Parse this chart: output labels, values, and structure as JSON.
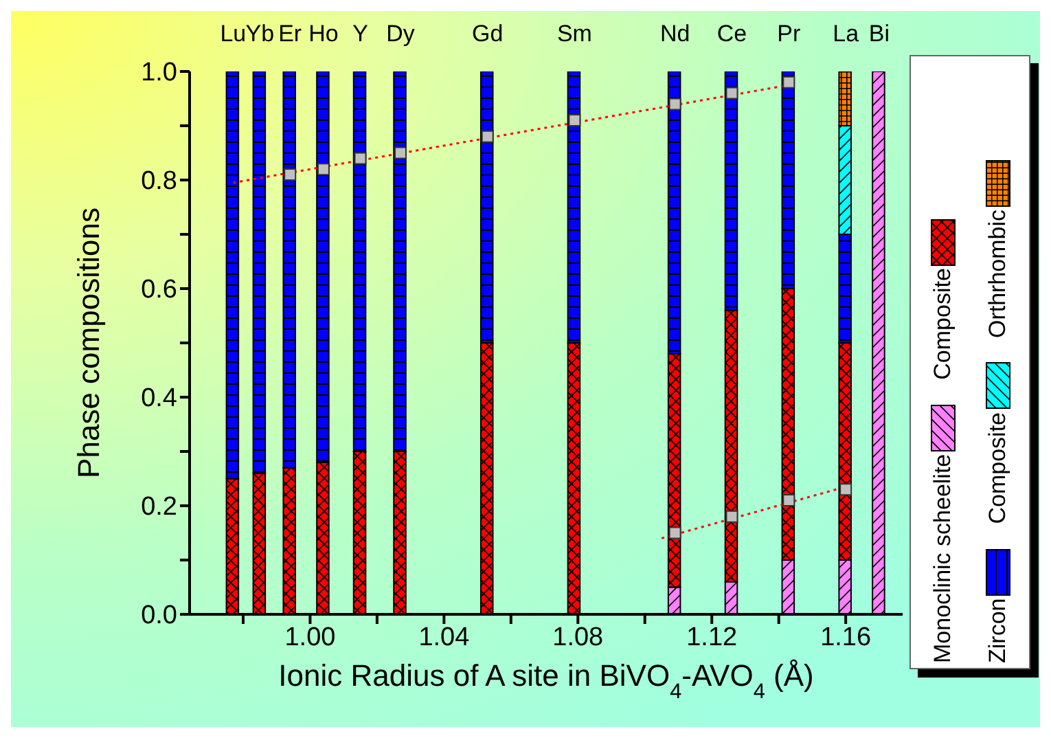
{
  "chart_data": {
    "type": "bar",
    "stacked": true,
    "xlabel": "Ionic Radius of A site in BiVO$_{4}$-AVO$_{4}$ (Å)",
    "ylabel": "Phase compositions",
    "x": [
      0.977,
      0.985,
      0.994,
      1.004,
      1.015,
      1.027,
      1.053,
      1.079,
      1.109,
      1.126,
      1.143,
      1.16,
      1.17
    ],
    "series": [
      {
        "name": "Monoclinic scheelite",
        "color": "#ff80ff",
        "values": [
          null,
          null,
          null,
          null,
          null,
          null,
          null,
          null,
          0.05,
          0.06,
          0.1,
          0.1,
          1.0
        ]
      },
      {
        "name": "Composite",
        "color": "#ff0000",
        "values": [
          0.25,
          0.26,
          0.27,
          0.28,
          0.3,
          0.3,
          0.5,
          0.5,
          0.43,
          0.5,
          0.5,
          0.4,
          null
        ]
      },
      {
        "name": "Zircon",
        "color": "#0000ff",
        "values": [
          0.75,
          0.74,
          0.73,
          0.72,
          0.7,
          0.7,
          0.5,
          0.5,
          0.52,
          0.44,
          0.4,
          0.2,
          null
        ]
      },
      {
        "name": "Composite",
        "color": "#00ffff",
        "values": [
          null,
          null,
          null,
          null,
          null,
          null,
          null,
          null,
          null,
          null,
          null,
          0.2,
          null
        ]
      },
      {
        "name": "Orthrhombic",
        "color": "#ff8000",
        "values": [
          null,
          null,
          null,
          null,
          null,
          null,
          null,
          null,
          null,
          null,
          null,
          0.1,
          null
        ]
      },
      {
        "type": "line",
        "color": "#ff0000",
        "line_style": "dotted",
        "marker": "none",
        "x": [
          0.977,
          1.143
        ],
        "values": [
          0.795,
          0.975
        ]
      },
      {
        "type": "line",
        "color": "#ff0000",
        "line_style": "dotted",
        "marker": "none",
        "x": [
          1.105,
          1.16
        ],
        "values": [
          0.14,
          0.235
        ]
      },
      {
        "type": "scatter",
        "color": "#c0c0c0",
        "marker": "square",
        "x": [
          0.994,
          1.004,
          1.015,
          1.027,
          1.053,
          1.079,
          1.109,
          1.126,
          1.143
        ],
        "values": [
          0.81,
          0.82,
          0.84,
          0.85,
          0.88,
          0.91,
          0.94,
          0.96,
          0.98
        ]
      },
      {
        "type": "scatter",
        "color": "#c0c0c0",
        "marker": "square",
        "x": [
          1.109,
          1.126,
          1.143,
          1.16
        ],
        "values": [
          0.15,
          0.18,
          0.21,
          0.23
        ]
      }
    ],
    "xlim": [
      0.964,
      1.177
    ],
    "xticks": [
      {
        "value": 0.98,
        "label": null
      },
      {
        "value": 1.0,
        "label": "1.00"
      },
      {
        "value": 1.02,
        "label": null
      },
      {
        "value": 1.04,
        "label": "1.04"
      },
      {
        "value": 1.06,
        "label": null
      },
      {
        "value": 1.08,
        "label": "1.08"
      },
      {
        "value": 1.1,
        "label": null
      },
      {
        "value": 1.12,
        "label": "1.12"
      },
      {
        "value": 1.14,
        "label": null
      },
      {
        "value": 1.16,
        "label": "1.16"
      }
    ],
    "annotations": [
      {
        "text": "Lu",
        "x": 0.977,
        "y": 1.0
      },
      {
        "text": "Yb",
        "x": 0.985,
        "y": 1.0
      },
      {
        "text": "Er",
        "x": 0.994,
        "y": 1.0
      },
      {
        "text": "Ho",
        "x": 1.004,
        "y": 1.0
      },
      {
        "text": "Y",
        "x": 1.015,
        "y": 1.0
      },
      {
        "text": "Dy",
        "x": 1.027,
        "y": 1.0
      },
      {
        "text": "Gd",
        "x": 1.053,
        "y": 1.0
      },
      {
        "text": "Sm",
        "x": 1.079,
        "y": 1.0
      },
      {
        "text": "Nd",
        "x": 1.109,
        "y": 1.0
      },
      {
        "text": "Ce",
        "x": 1.126,
        "y": 1.0
      },
      {
        "text": "Pr",
        "x": 1.143,
        "y": 1.0
      },
      {
        "text": "La",
        "x": 1.16,
        "y": 1.0
      },
      {
        "text": "Bi",
        "x": 1.17,
        "y": 1.0
      }
    ],
    "ylim": [
      0,
      1.0
    ],
    "yticks": [
      {
        "value": 0,
        "label": "0.0"
      },
      {
        "value": 0.1,
        "label": null
      },
      {
        "value": 0.2,
        "label": "0.2"
      },
      {
        "value": 0.3,
        "label": null
      },
      {
        "value": 0.4,
        "label": "0.4"
      },
      {
        "value": 0.5,
        "label": null
      },
      {
        "value": 0.6,
        "label": "0.6"
      },
      {
        "value": 0.7,
        "label": null
      },
      {
        "value": 0.8,
        "label": "0.8"
      },
      {
        "value": 0.9,
        "label": null
      },
      {
        "value": 1.0,
        "label": "1.0"
      }
    ],
    "grid": false,
    "legend": "right"
  }
}
